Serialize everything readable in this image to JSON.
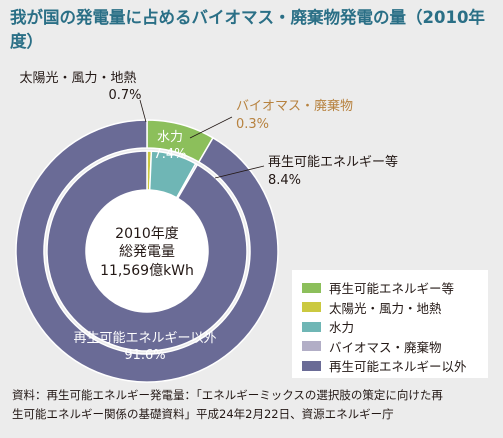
{
  "title": "我が国の発電量に占めるバイオマス・廃棄物発電の量（2010年度）",
  "colors": {
    "renewable": "#8cbf5b",
    "solar_wind_geo": "#cbc940",
    "hydro": "#6fb6b5",
    "biomass": "#b2aec6",
    "non_renewable": "#6a6b96",
    "biomass_label": "#b7823f"
  },
  "chart_data": {
    "type": "pie",
    "subtype": "double-donut",
    "center_label": [
      "2010年度",
      "総発電量",
      "11,569億kWh"
    ],
    "outer_ring": [
      {
        "name": "再生可能エネルギー等",
        "value": 8.4,
        "unit": "%",
        "color": "#8cbf5b"
      },
      {
        "name": "再生可能エネルギー以外",
        "value": 91.6,
        "unit": "%",
        "color": "#6a6b96"
      }
    ],
    "inner_ring": [
      {
        "name": "太陽光・風力・地熱",
        "value": 0.7,
        "unit": "%",
        "color": "#cbc940"
      },
      {
        "name": "水力",
        "value": 7.4,
        "unit": "%",
        "color": "#6fb6b5"
      },
      {
        "name": "バイオマス・廃棄物",
        "value": 0.3,
        "unit": "%",
        "color": "#b2aec6"
      },
      {
        "name": "再生可能エネルギー以外",
        "value": 91.6,
        "unit": "%",
        "color": "#6a6b96"
      }
    ],
    "labels": {
      "solar": {
        "name": "太陽光・風力・地熱",
        "value": "0.7%"
      },
      "biomass": {
        "name": "バイオマス・廃棄物",
        "value": "0.3%"
      },
      "hydro": {
        "name": "水力",
        "value": "7.4%"
      },
      "renewable": {
        "name": "再生可能エネルギー等",
        "value": "8.4%"
      },
      "non_renewable": {
        "name": "再生可能エネルギー以外",
        "value": "91.6%"
      }
    },
    "legend_position": "bottom-right"
  },
  "legend": [
    {
      "label": "再生可能エネルギー等",
      "color": "#8cbf5b"
    },
    {
      "label": "太陽光・風力・地熱",
      "color": "#cbc940"
    },
    {
      "label": "水力",
      "color": "#6fb6b5"
    },
    {
      "label": "バイオマス・廃棄物",
      "color": "#b2aec6"
    },
    {
      "label": "再生可能エネルギー以外",
      "color": "#6a6b96"
    }
  ],
  "source": {
    "line1": "資料：再生可能エネルギー発電量：「エネルギーミックスの選択肢の策定に向けた再",
    "line2": "生可能エネルギー関係の基礎資料」平成24年2月22日、資源エネルギー庁"
  }
}
